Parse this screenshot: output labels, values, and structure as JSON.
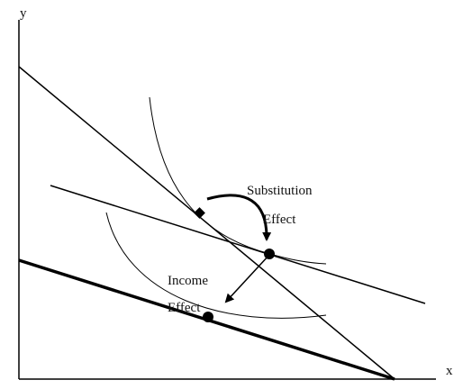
{
  "axes": {
    "y_label": "y",
    "x_label": "x"
  },
  "labels": {
    "substitution_line1": "Substitution",
    "substitution_line2": "Effect",
    "income_line1": "Income",
    "income_line2": "Effect"
  },
  "colors": {
    "ink": "#000000",
    "background": "#ffffff"
  }
}
